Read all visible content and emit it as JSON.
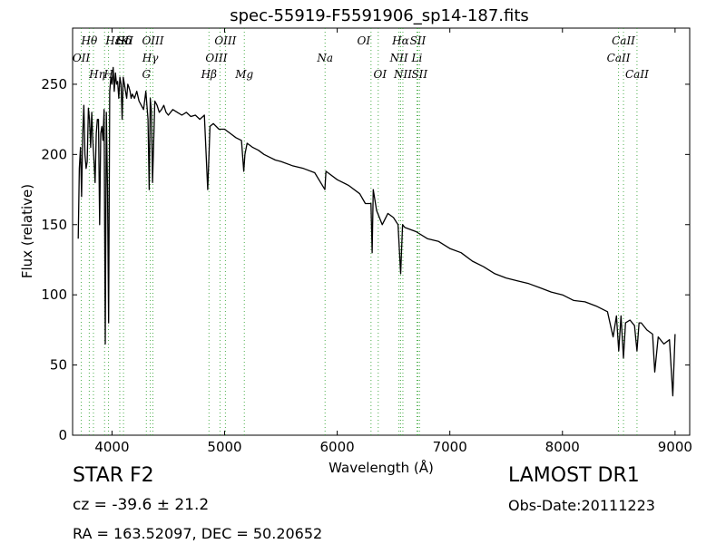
{
  "chart_data": {
    "type": "line",
    "title": "spec-55919-F5591906_sp14-187.fits",
    "xlabel": "Wavelength (Å)",
    "ylabel": "Flux (relative)",
    "xlim": [
      3650,
      9130
    ],
    "ylim": [
      0,
      290
    ],
    "xticks": [
      4000,
      5000,
      6000,
      7000,
      8000,
      9000
    ],
    "yticks": [
      0,
      50,
      100,
      150,
      200,
      250
    ],
    "line_color": "#000000",
    "marker_color": "#2ca02c",
    "series": [
      {
        "x": [
          3700,
          3710,
          3720,
          3730,
          3740,
          3750,
          3760,
          3770,
          3780,
          3790,
          3800,
          3810,
          3820,
          3830,
          3840,
          3850,
          3860,
          3870,
          3880,
          3890,
          3900,
          3910,
          3920,
          3930,
          3940,
          3950,
          3960,
          3970,
          3980,
          3990,
          4000,
          4010,
          4020,
          4030,
          4040,
          4050,
          4060,
          4070,
          4080,
          4090,
          4100,
          4110,
          4120,
          4130,
          4140,
          4150,
          4160,
          4170,
          4180,
          4200,
          4220,
          4240,
          4260,
          4280,
          4300,
          4310,
          4320,
          4330,
          4340,
          4350,
          4360,
          4380,
          4400,
          4420,
          4440,
          4460,
          4480,
          4500,
          4540,
          4580,
          4620,
          4660,
          4700,
          4740,
          4780,
          4820,
          4850,
          4861,
          4870,
          4900,
          4950,
          5000,
          5050,
          5100,
          5150,
          5170,
          5180,
          5200,
          5250,
          5300,
          5350,
          5400,
          5450,
          5500,
          5600,
          5700,
          5800,
          5890,
          5900,
          6000,
          6100,
          6200,
          6250,
          6300,
          6310,
          6320,
          6350,
          6400,
          6450,
          6500,
          6540,
          6563,
          6580,
          6600,
          6700,
          6800,
          6900,
          7000,
          7100,
          7200,
          7300,
          7400,
          7500,
          7600,
          7700,
          7800,
          7900,
          8000,
          8100,
          8200,
          8300,
          8400,
          8450,
          8480,
          8500,
          8520,
          8542,
          8560,
          8600,
          8640,
          8662,
          8680,
          8700,
          8750,
          8800,
          8820,
          8850,
          8900,
          8950,
          8980,
          9000
        ],
        "y": [
          140,
          190,
          205,
          170,
          215,
          235,
          200,
          190,
          195,
          233,
          225,
          205,
          230,
          210,
          195,
          180,
          215,
          225,
          225,
          150,
          215,
          220,
          210,
          232,
          65,
          230,
          175,
          80,
          245,
          255,
          250,
          262,
          245,
          258,
          250,
          252,
          240,
          255,
          250,
          225,
          255,
          250,
          245,
          240,
          250,
          248,
          245,
          240,
          243,
          240,
          245,
          238,
          235,
          232,
          245,
          235,
          225,
          175,
          240,
          230,
          180,
          238,
          235,
          230,
          232,
          235,
          230,
          228,
          232,
          230,
          228,
          230,
          227,
          228,
          225,
          228,
          175,
          200,
          220,
          222,
          218,
          218,
          215,
          212,
          210,
          188,
          200,
          208,
          205,
          203,
          200,
          198,
          196,
          195,
          192,
          190,
          187,
          175,
          188,
          182,
          178,
          172,
          165,
          165,
          130,
          175,
          160,
          150,
          158,
          155,
          150,
          115,
          150,
          148,
          145,
          140,
          138,
          133,
          130,
          124,
          120,
          115,
          112,
          110,
          108,
          105,
          102,
          100,
          96,
          95,
          92,
          88,
          70,
          85,
          60,
          85,
          55,
          80,
          82,
          78,
          60,
          80,
          80,
          75,
          72,
          45,
          70,
          65,
          68,
          28,
          72
        ]
      }
    ],
    "lines_top": [
      {
        "label": "Hθ",
        "x": 3798
      },
      {
        "label": "OII",
        "x": 3727
      },
      {
        "label": "Hη",
        "x": 3835
      },
      {
        "label": "HεK",
        "x": 3934
      },
      {
        "label": "SII",
        "x": 4069
      },
      {
        "label": "H",
        "x": 3969
      },
      {
        "label": "Hδ",
        "x": 4102
      },
      {
        "label": "OIII",
        "x": 4363
      },
      {
        "label": "Hγ",
        "x": 4340
      },
      {
        "label": "G",
        "x": 4305
      },
      {
        "label": "OIII",
        "x": 5007
      },
      {
        "label": "OIII",
        "x": 4959
      },
      {
        "label": "Hβ",
        "x": 4861
      },
      {
        "label": "Mg",
        "x": 5175
      },
      {
        "label": "Na",
        "x": 5892
      },
      {
        "label": "OI",
        "x": 6300
      },
      {
        "label": "OI",
        "x": 6364
      },
      {
        "label": "Hα",
        "x": 6563
      },
      {
        "label": "SII",
        "x": 6716
      },
      {
        "label": "NII",
        "x": 6548
      },
      {
        "label": "Li",
        "x": 6708
      },
      {
        "label": "NII",
        "x": 6583
      },
      {
        "label": "SII",
        "x": 6731
      },
      {
        "label": "CaII",
        "x": 8542
      },
      {
        "label": "CaII",
        "x": 8498
      },
      {
        "label": "CaII",
        "x": 8662
      }
    ]
  },
  "info": {
    "obj_class": "STAR   F2",
    "survey": "LAMOST DR1",
    "cz_label": "cz = -39.6 ± 21.2",
    "obs_date": "Obs-Date:20111223",
    "radec": "RA = 163.52097, DEC = 50.20652"
  }
}
